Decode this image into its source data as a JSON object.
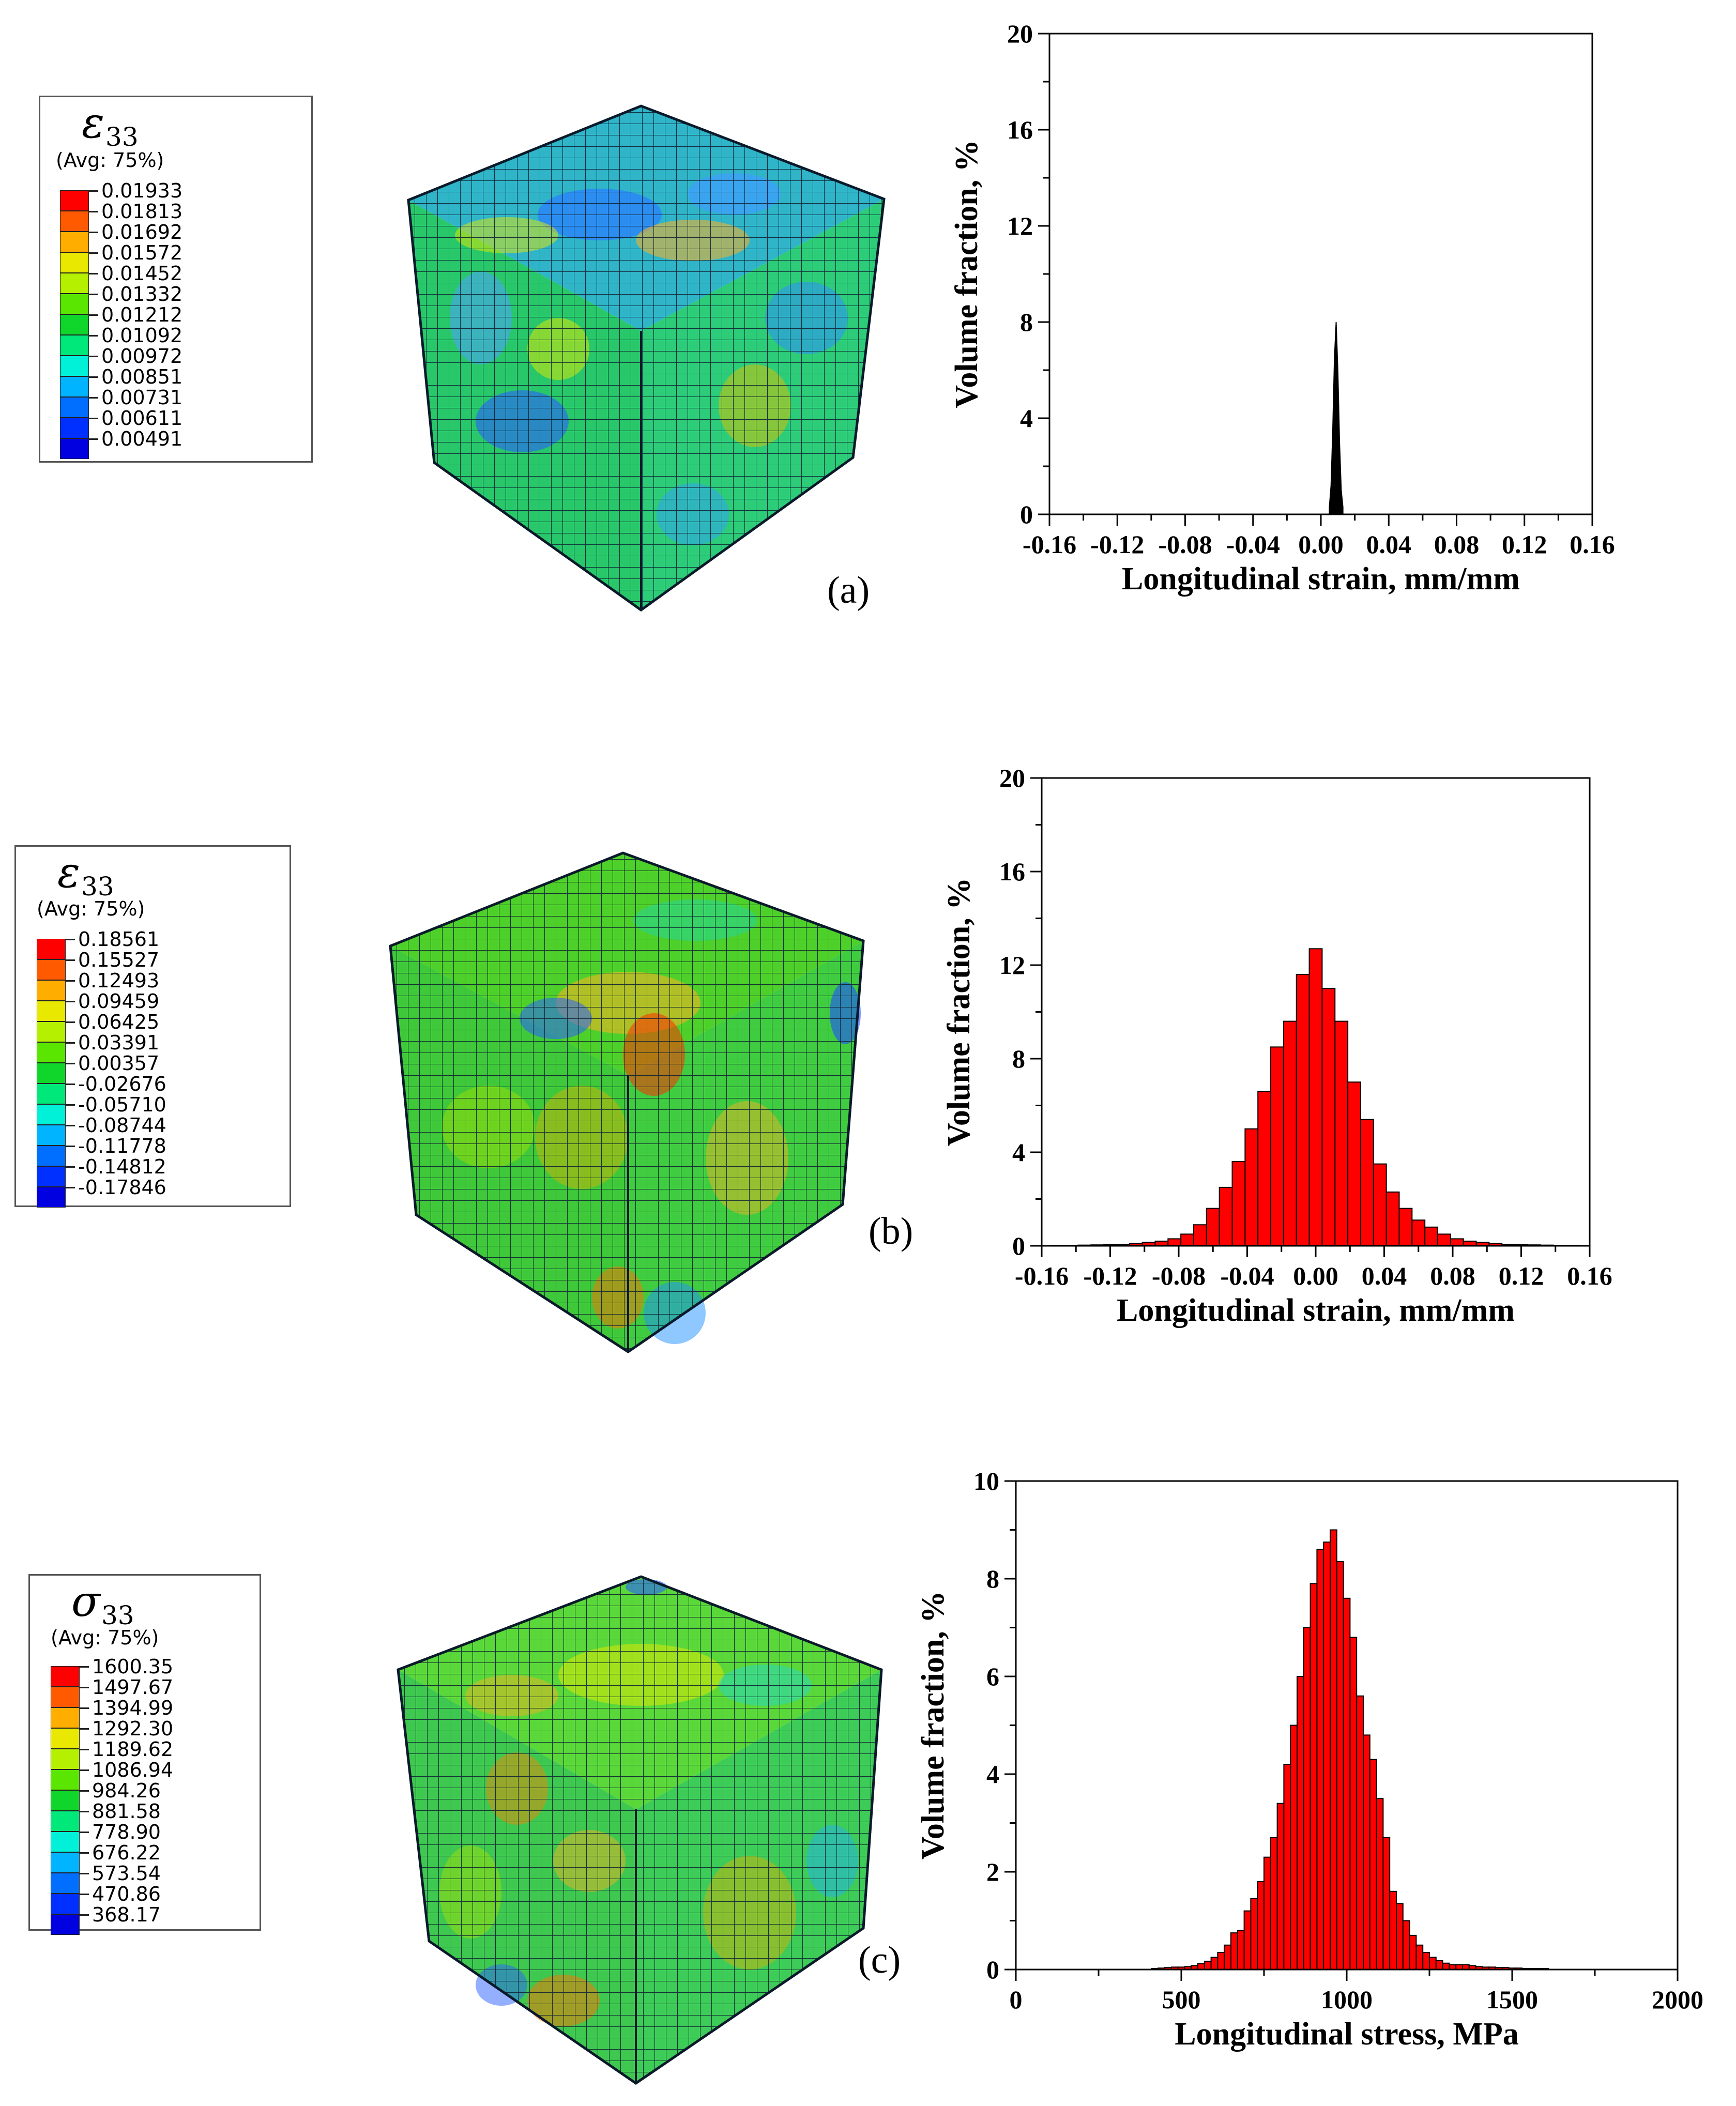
{
  "panels": [
    {
      "label": "(a)",
      "legend": {
        "symbol": "ε",
        "subscript": "33",
        "avg": "(Avg: 75%)",
        "values": [
          "0.01933",
          "0.01813",
          "0.01692",
          "0.01572",
          "0.01452",
          "0.01332",
          "0.01212",
          "0.01092",
          "0.00972",
          "0.00851",
          "0.00731",
          "0.00611",
          "0.00491"
        ]
      }
    },
    {
      "label": "(b)",
      "legend": {
        "symbol": "ε",
        "subscript": "33",
        "avg": "(Avg: 75%)",
        "values": [
          "0.18561",
          "0.15527",
          "0.12493",
          "0.09459",
          "0.06425",
          "0.03391",
          "0.00357",
          "-0.02676",
          "-0.05710",
          "-0.08744",
          "-0.11778",
          "-0.14812",
          "-0.17846"
        ]
      }
    },
    {
      "label": "(c)",
      "legend": {
        "symbol": "σ",
        "subscript": "33",
        "avg": "(Avg: 75%)",
        "values": [
          "1600.35",
          "1497.67",
          "1394.99",
          "1292.30",
          "1189.62",
          "1086.94",
          "984.26",
          "881.58",
          "778.90",
          "676.22",
          "573.54",
          "470.86",
          "368.17"
        ]
      }
    }
  ],
  "legend_colors": [
    "#ff0000",
    "#ff5a00",
    "#ffae00",
    "#e8e800",
    "#b4f000",
    "#5ae600",
    "#10d62c",
    "#00e87a",
    "#00f0d8",
    "#00b4ff",
    "#006eff",
    "#0030ff",
    "#0000e0"
  ],
  "chart_data": [
    {
      "type": "bar",
      "style": "filled-peak",
      "color": "#000000",
      "title": "",
      "xlabel": "Longitudinal strain, mm/mm",
      "ylabel": "Volume fraction,  %",
      "xlim": [
        -0.16,
        0.16
      ],
      "ylim": [
        0,
        20
      ],
      "xticks": [
        "-0.16",
        "-0.12",
        "-0.08",
        "-0.04",
        "0.00",
        "0.04",
        "0.08",
        "0.12",
        "0.16"
      ],
      "yticks": [
        "0",
        "4",
        "8",
        "12",
        "16",
        "20"
      ],
      "x": [
        0.005,
        0.006,
        0.007,
        0.008,
        0.009,
        0.01,
        0.011,
        0.012,
        0.013
      ],
      "values": [
        0.3,
        1.2,
        3.5,
        6.5,
        8.0,
        6.0,
        3.0,
        1.0,
        0.3
      ]
    },
    {
      "type": "bar",
      "color": "#ff0000",
      "title": "",
      "xlabel": "Longitudinal strain, mm/mm",
      "ylabel": "Volume fraction,  %",
      "xlim": [
        -0.16,
        0.16
      ],
      "ylim": [
        0,
        20
      ],
      "xticks": [
        "-0.16",
        "-0.12",
        "-0.08",
        "-0.04",
        "0.00",
        "0.04",
        "0.08",
        "0.12",
        "0.16"
      ],
      "yticks": [
        "0",
        "4",
        "8",
        "12",
        "16",
        "20"
      ],
      "bin_width": 0.0075,
      "x": [
        -0.15,
        -0.1425,
        -0.135,
        -0.1275,
        -0.12,
        -0.1125,
        -0.105,
        -0.0975,
        -0.09,
        -0.0825,
        -0.075,
        -0.0675,
        -0.06,
        -0.0525,
        -0.045,
        -0.0375,
        -0.03,
        -0.0225,
        -0.015,
        -0.0075,
        0.0,
        0.0075,
        0.015,
        0.0225,
        0.03,
        0.0375,
        0.045,
        0.0525,
        0.06,
        0.0675,
        0.075,
        0.0825,
        0.09,
        0.0975,
        0.105,
        0.1125,
        0.12,
        0.1275,
        0.135,
        0.1425,
        0.15
      ],
      "values": [
        0.02,
        0.02,
        0.03,
        0.04,
        0.05,
        0.06,
        0.1,
        0.15,
        0.2,
        0.3,
        0.5,
        0.9,
        1.6,
        2.5,
        3.6,
        5.0,
        6.6,
        8.5,
        9.6,
        11.6,
        12.7,
        11.0,
        9.6,
        7.0,
        5.4,
        3.5,
        2.3,
        1.6,
        1.1,
        0.8,
        0.5,
        0.3,
        0.2,
        0.15,
        0.1,
        0.06,
        0.05,
        0.04,
        0.03,
        0.02,
        0.02
      ]
    },
    {
      "type": "bar",
      "color": "#ff0000",
      "title": "",
      "xlabel": "Longitudinal stress, MPa",
      "ylabel": "Volume fraction,  %",
      "xlim": [
        0,
        2000
      ],
      "ylim": [
        0,
        10
      ],
      "xticks": [
        "0",
        "500",
        "1000",
        "1500",
        "2000"
      ],
      "yticks": [
        "0",
        "2",
        "4",
        "6",
        "8",
        "10"
      ],
      "bin_width": 20,
      "x": [
        420,
        440,
        460,
        480,
        500,
        520,
        540,
        560,
        580,
        600,
        620,
        640,
        660,
        680,
        700,
        720,
        740,
        760,
        780,
        800,
        820,
        840,
        860,
        880,
        900,
        920,
        940,
        960,
        980,
        1000,
        1020,
        1040,
        1060,
        1080,
        1100,
        1120,
        1140,
        1160,
        1180,
        1200,
        1220,
        1240,
        1260,
        1280,
        1300,
        1320,
        1340,
        1360,
        1380,
        1400,
        1420,
        1440,
        1460,
        1480,
        1500,
        1520,
        1540,
        1560,
        1580,
        1600
      ],
      "values": [
        0.02,
        0.03,
        0.04,
        0.05,
        0.05,
        0.06,
        0.08,
        0.12,
        0.17,
        0.25,
        0.35,
        0.5,
        0.75,
        0.8,
        1.2,
        1.45,
        1.8,
        2.3,
        2.7,
        3.4,
        4.2,
        5.0,
        6.0,
        7.0,
        7.9,
        8.6,
        8.75,
        9.0,
        8.35,
        7.6,
        6.8,
        5.6,
        4.8,
        4.3,
        3.5,
        2.7,
        1.6,
        1.35,
        1.0,
        0.7,
        0.5,
        0.35,
        0.25,
        0.18,
        0.13,
        0.1,
        0.1,
        0.1,
        0.08,
        0.06,
        0.05,
        0.05,
        0.04,
        0.04,
        0.03,
        0.03,
        0.02,
        0.02,
        0.02,
        0.02
      ]
    }
  ]
}
